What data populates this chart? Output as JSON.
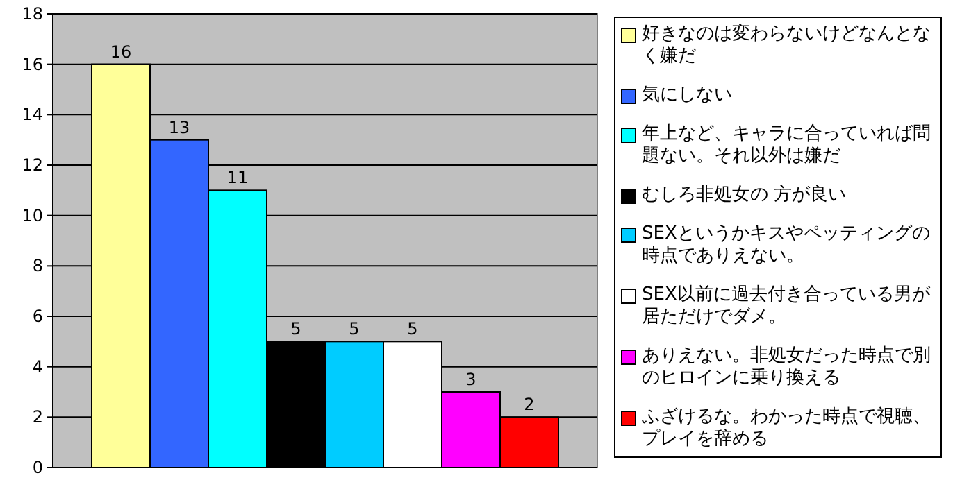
{
  "chart_data": {
    "type": "bar",
    "categories": [
      null
    ],
    "series": [
      {
        "name": "好きなのは変わらないけどなんとなく嫌だ",
        "color": "#ffff99",
        "values": [
          16
        ]
      },
      {
        "name": "気にしない",
        "color": "#3366ff",
        "values": [
          13
        ]
      },
      {
        "name": "年上など、キャラに合っていれば問題ない。それ以外は嫌だ",
        "color": "#00ffff",
        "values": [
          11
        ]
      },
      {
        "name": "むしろ非処女の 方が良い",
        "color": "#000000",
        "values": [
          5
        ]
      },
      {
        "name": "SEXというかキスやペッティングの時点でありえない。",
        "color": "#00ccff",
        "values": [
          5
        ]
      },
      {
        "name": "SEX以前に過去付き合っている男が居ただけでダメ。",
        "color": "#ffffff",
        "values": [
          5
        ]
      },
      {
        "name": "ありえない。非処女だった時点で別のヒロインに乗り換える",
        "color": "#ff00ff",
        "values": [
          3
        ]
      },
      {
        "name": "ふざけるな。わかった時点で視聴、プレイを辞める",
        "color": "#ff0000",
        "values": [
          2
        ]
      }
    ],
    "ylim": [
      0,
      18
    ],
    "yticks": [
      0,
      2,
      4,
      6,
      8,
      10,
      12,
      14,
      16,
      18
    ],
    "grid": "y",
    "legend": "right",
    "data_labels": true
  }
}
